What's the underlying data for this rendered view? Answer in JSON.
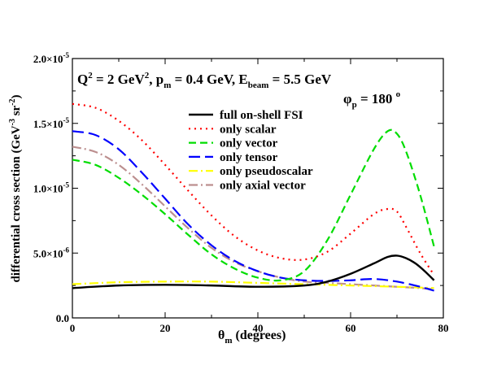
{
  "chart_data": {
    "type": "line",
    "annotations": {
      "kinematics": {
        "q2": "Q",
        "q2_sup": "2",
        "q2_val": " = 2 GeV",
        "q2_unit_sup": "2",
        "pm": ", p",
        "pm_sub": "m",
        "pm_val": " = 0.4 GeV, E",
        "e_sub": "beam",
        "e_val": " = 5.5 GeV"
      },
      "phi": {
        "sym": "φ",
        "sub": "p",
        "val": " = 180 ",
        "sup": "o"
      }
    },
    "xlabel": {
      "sym": "θ",
      "sub": "m",
      "rest": " (degrees)"
    },
    "ylabel": {
      "main": "differential cross section (GeV",
      "sup1": "-3",
      "mid": " sr",
      "sup2": "-2",
      "end": ")"
    },
    "xlim": [
      0,
      80
    ],
    "ylim": [
      0,
      2e-05
    ],
    "x_ticks": [
      0,
      20,
      40,
      60,
      80
    ],
    "y_ticks": [
      {
        "v": 0,
        "base": "0.0",
        "exp": ""
      },
      {
        "v": 5e-06,
        "base": "5.0×10",
        "exp": "-6"
      },
      {
        "v": 1e-05,
        "base": "1.0×10",
        "exp": "-5"
      },
      {
        "v": 1.5e-05,
        "base": "1.5×10",
        "exp": "-5"
      },
      {
        "v": 2e-05,
        "base": "2.0×10",
        "exp": "-5"
      }
    ],
    "legend_position": "upper-center",
    "series": [
      {
        "name": "full on-shell FSI",
        "color": "#000000",
        "dash": "solid",
        "x": [
          0,
          10,
          20,
          30,
          40,
          50,
          55,
          60,
          65,
          68,
          70,
          72,
          74,
          76,
          78
        ],
        "y": [
          2.3e-06,
          2.5e-06,
          2.55e-06,
          2.5e-06,
          2.4e-06,
          2.5e-06,
          2.8e-06,
          3.4e-06,
          4.2e-06,
          4.7e-06,
          4.8e-06,
          4.6e-06,
          4.2e-06,
          3.6e-06,
          2.9e-06
        ]
      },
      {
        "name": "only scalar",
        "color": "#ff0000",
        "dash": "dotted",
        "x": [
          0,
          5,
          10,
          15,
          20,
          25,
          30,
          35,
          40,
          45,
          50,
          55,
          60,
          65,
          68,
          70,
          72,
          75,
          78
        ],
        "y": [
          1.65e-05,
          1.62e-05,
          1.52e-05,
          1.37e-05,
          1.18e-05,
          9.8e-06,
          7.9e-06,
          6.3e-06,
          5.2e-06,
          4.6e-06,
          4.5e-06,
          5.1e-06,
          6.5e-06,
          8e-06,
          8.4e-06,
          8.2e-06,
          7e-06,
          5e-06,
          3.3e-06
        ]
      },
      {
        "name": "only vector",
        "color": "#00dd00",
        "dash": "dashed",
        "x": [
          0,
          5,
          10,
          15,
          20,
          25,
          30,
          35,
          40,
          45,
          50,
          55,
          60,
          65,
          68,
          70,
          72,
          75,
          78
        ],
        "y": [
          1.22e-05,
          1.18e-05,
          1.08e-05,
          9.5e-06,
          8e-06,
          6.4e-06,
          4.9e-06,
          3.8e-06,
          3.1e-06,
          2.9e-06,
          3.6e-06,
          6e-06,
          9.5e-06,
          1.3e-05,
          1.44e-05,
          1.42e-05,
          1.28e-05,
          9.5e-06,
          5.5e-06
        ]
      },
      {
        "name": "only tensor",
        "color": "#0000ff",
        "dash": "long-dash",
        "x": [
          0,
          5,
          10,
          15,
          20,
          25,
          30,
          35,
          40,
          45,
          50,
          55,
          60,
          65,
          70,
          75,
          78
        ],
        "y": [
          1.44e-05,
          1.41e-05,
          1.3e-05,
          1.12e-05,
          9.2e-06,
          7.2e-06,
          5.6e-06,
          4.4e-06,
          3.6e-06,
          3.1e-06,
          2.9e-06,
          2.85e-06,
          2.9e-06,
          3e-06,
          2.8e-06,
          2.4e-06,
          2.1e-06
        ]
      },
      {
        "name": "only pseudoscalar",
        "color": "#ffff00",
        "dash": "dash-dot",
        "x": [
          0,
          10,
          20,
          30,
          40,
          50,
          60,
          70,
          78
        ],
        "y": [
          2.6e-06,
          2.75e-06,
          2.8e-06,
          2.8e-06,
          2.7e-06,
          2.6e-06,
          2.5e-06,
          2.4e-06,
          2.3e-06
        ]
      },
      {
        "name": "only axial vector",
        "color": "#bc8f8f",
        "dash": "dash-dot",
        "x": [
          0,
          5,
          10,
          15,
          20,
          25,
          30,
          35,
          40,
          45,
          50,
          55,
          60,
          65,
          70,
          75,
          78
        ],
        "y": [
          1.32e-05,
          1.28e-05,
          1.18e-05,
          1.03e-05,
          8.6e-06,
          6.9e-06,
          5.4e-06,
          4.3e-06,
          3.6e-06,
          3.1e-06,
          2.8e-06,
          2.7e-06,
          2.6e-06,
          2.5e-06,
          2.4e-06,
          2.3e-06,
          2.2e-06
        ]
      }
    ]
  }
}
